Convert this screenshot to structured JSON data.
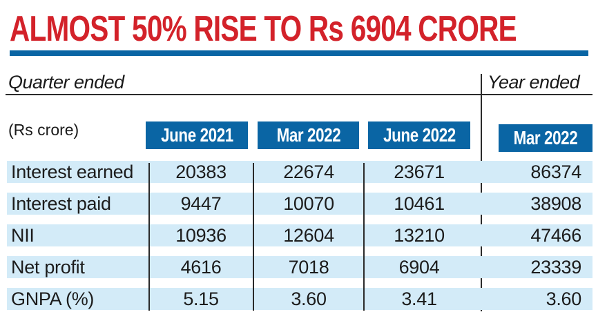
{
  "title": "ALMOST 50% RISE TO Rs 6904 CRORE",
  "section_labels": {
    "quarter": "Quarter ended",
    "year": "Year ended"
  },
  "units": "(Rs crore)",
  "columns": [
    "June 2021",
    "Mar 2022",
    "June 2022",
    "Mar 2022"
  ],
  "rows": [
    {
      "label": "Interest earned",
      "values": [
        "20383",
        "22674",
        "23671",
        "86374"
      ]
    },
    {
      "label": "Interest paid",
      "values": [
        "9447",
        "10070",
        "10461",
        "38908"
      ]
    },
    {
      "label": "NII",
      "values": [
        "10936",
        "12604",
        "13210",
        "47466"
      ]
    },
    {
      "label": "Net profit",
      "values": [
        "4616",
        "7018",
        "6904",
        "23339"
      ]
    },
    {
      "label": "GNPA (%)",
      "values": [
        "5.15",
        "3.60",
        "3.41",
        "3.60"
      ]
    }
  ],
  "colors": {
    "title": "#d3222a",
    "accent_blue": "#0a65a4",
    "row_band": "#d3ebf8"
  }
}
